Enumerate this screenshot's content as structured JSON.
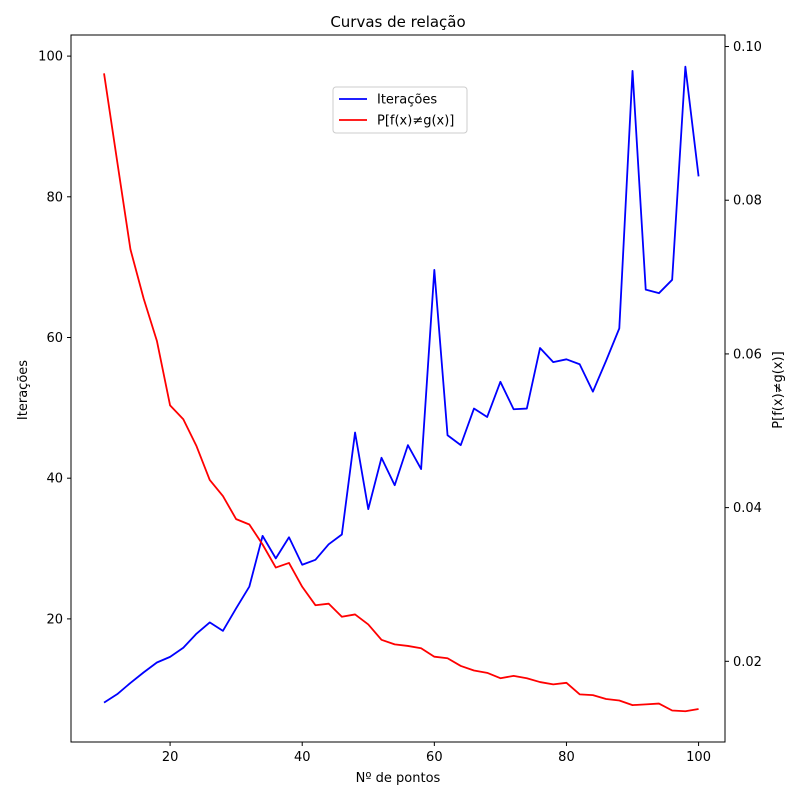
{
  "chart_data": {
    "type": "line",
    "title": "Curvas de relação",
    "xlabel": "Nº de pontos",
    "ylabel_left": "Iterações",
    "ylabel_right": "P[f(x)≠g(x)]",
    "xlim": [
      5,
      104
    ],
    "ylim_left": [
      2.5,
      103.0
    ],
    "ylim_right": [
      0.0095,
      0.1015
    ],
    "xticks": [
      20,
      40,
      60,
      80,
      100
    ],
    "yticks_left": [
      20,
      40,
      60,
      80,
      100
    ],
    "yticks_right": [
      0.02,
      0.04,
      0.06,
      0.08,
      0.1
    ],
    "yticklabels_right": [
      "0.02",
      "0.04",
      "0.06",
      "0.08",
      "0.10"
    ],
    "grid": false,
    "legend_position": "upper-center",
    "x": [
      10,
      12,
      14,
      16,
      18,
      20,
      22,
      24,
      26,
      28,
      30,
      32,
      34,
      36,
      38,
      40,
      42,
      44,
      46,
      48,
      50,
      52,
      54,
      56,
      58,
      60,
      62,
      64,
      66,
      68,
      70,
      72,
      74,
      76,
      78,
      80,
      82,
      84,
      86,
      88,
      90,
      92,
      94,
      96,
      98,
      100
    ],
    "series": [
      {
        "name": "Iterações",
        "axis": "left",
        "color": "#0000ff",
        "values": [
          8.1,
          9.3,
          10.9,
          12.4,
          13.8,
          14.6,
          15.9,
          17.9,
          19.5,
          18.3,
          21.5,
          24.6,
          31.8,
          28.6,
          31.6,
          27.7,
          28.4,
          30.6,
          32.0,
          46.5,
          35.6,
          42.9,
          39.0,
          44.7,
          41.3,
          69.6,
          46.1,
          44.7,
          49.9,
          48.7,
          53.7,
          49.8,
          49.9,
          58.5,
          56.5,
          56.9,
          56.2,
          52.3,
          56.7,
          61.3,
          97.9,
          66.8,
          66.3,
          68.2,
          98.5,
          82.9
        ]
      },
      {
        "name": "P[f(x)≠g(x)]",
        "axis": "right",
        "color": "#ff0000",
        "values": [
          0.0965,
          0.085,
          0.0736,
          0.0672,
          0.0617,
          0.0533,
          0.0515,
          0.048,
          0.0436,
          0.0415,
          0.0385,
          0.0378,
          0.0352,
          0.0322,
          0.0328,
          0.0297,
          0.0273,
          0.0275,
          0.0258,
          0.0261,
          0.0248,
          0.0228,
          0.0222,
          0.022,
          0.0217,
          0.0206,
          0.0204,
          0.0194,
          0.0188,
          0.0185,
          0.0178,
          0.0181,
          0.0178,
          0.0173,
          0.017,
          0.0172,
          0.0157,
          0.0156,
          0.0151,
          0.0149,
          0.0143,
          0.0144,
          0.0145,
          0.0136,
          0.0135,
          0.0138
        ]
      }
    ]
  }
}
